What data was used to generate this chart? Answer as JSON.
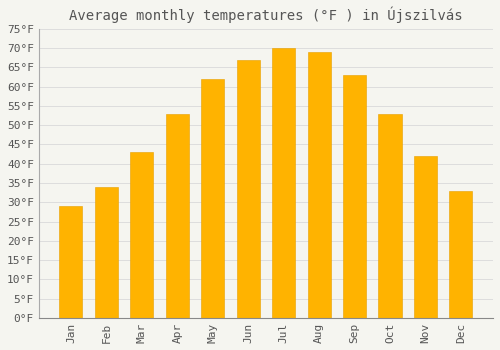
{
  "title": "Average monthly temperatures (°F ) in Újszilvás",
  "months": [
    "Jan",
    "Feb",
    "Mar",
    "Apr",
    "May",
    "Jun",
    "Jul",
    "Aug",
    "Sep",
    "Oct",
    "Nov",
    "Dec"
  ],
  "values": [
    29,
    34,
    43,
    53,
    62,
    67,
    70,
    69,
    63,
    53,
    42,
    33
  ],
  "bar_color_top": "#FFB300",
  "bar_color_bottom": "#FF8C00",
  "bar_edge_color": "#E8A000",
  "background_color": "#F5F5F0",
  "grid_color": "#DDDDDD",
  "text_color": "#555555",
  "ylim": [
    0,
    75
  ],
  "yticks": [
    0,
    5,
    10,
    15,
    20,
    25,
    30,
    35,
    40,
    45,
    50,
    55,
    60,
    65,
    70,
    75
  ],
  "title_fontsize": 10,
  "tick_fontsize": 8,
  "font_family": "monospace",
  "bar_width": 0.65
}
